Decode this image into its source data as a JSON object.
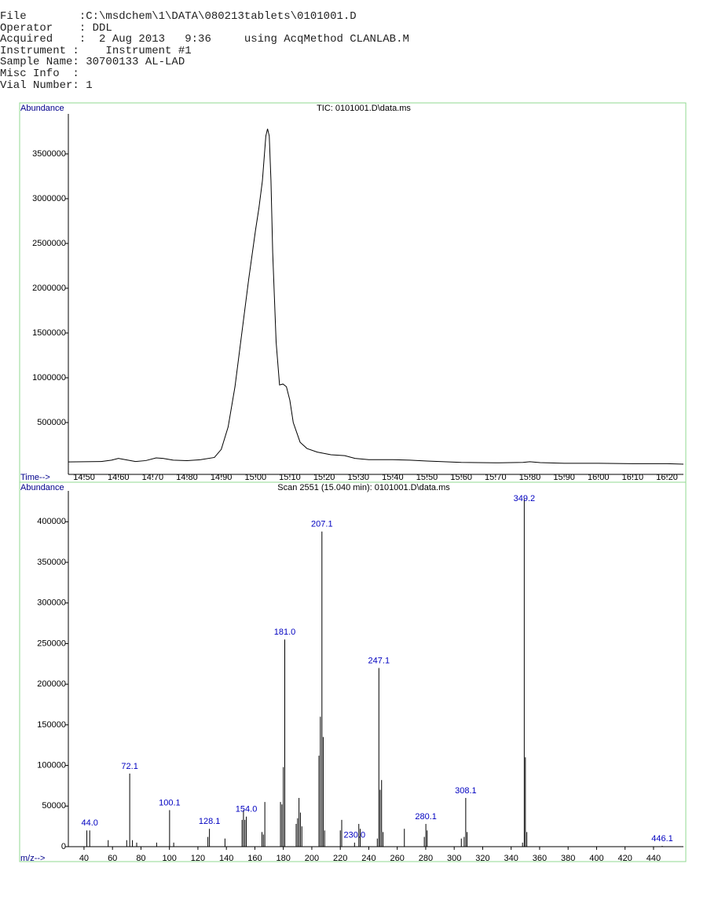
{
  "header": {
    "lines": [
      "File        :C:\\msdchem\\1\\DATA\\080213tablets\\0101001.D",
      "Operator    : DDL",
      "Acquired    :  2 Aug 2013   9:36     using AcqMethod CLANLAB.M",
      "Instrument :    Instrument #1",
      "Sample Name: 30700133 AL-LAD",
      "Misc Info  :",
      "Vial Number: 1"
    ]
  },
  "chart_data": [
    {
      "type": "line",
      "title": "TIC: 0101001.D\\data.ms",
      "xlabel": "Time-->",
      "ylabel": "Abundance",
      "color": "#000000",
      "label_color": "#00008b",
      "x": [
        14.454,
        14.5,
        14.55,
        14.58,
        14.6,
        14.62,
        14.65,
        14.68,
        14.71,
        14.73,
        14.76,
        14.8,
        14.84,
        14.88,
        14.9,
        14.92,
        14.94,
        14.96,
        14.98,
        15.0,
        15.01,
        15.02,
        15.03,
        15.035,
        15.04,
        15.045,
        15.05,
        15.06,
        15.07,
        15.08,
        15.09,
        15.1,
        15.11,
        15.13,
        15.15,
        15.18,
        15.22,
        15.26,
        15.29,
        15.33,
        15.4,
        15.45,
        15.5,
        15.6,
        15.7,
        15.78,
        15.8,
        15.83,
        15.9,
        16.0,
        16.1,
        16.2,
        16.248
      ],
      "values": [
        60000,
        62000,
        65000,
        80000,
        100000,
        85000,
        65000,
        75000,
        105000,
        100000,
        80000,
        75000,
        85000,
        110000,
        200000,
        450000,
        900000,
        1500000,
        2100000,
        2650000,
        2900000,
        3200000,
        3700000,
        3780000,
        3700000,
        3200000,
        2400000,
        1400000,
        920000,
        930000,
        900000,
        750000,
        500000,
        280000,
        210000,
        170000,
        140000,
        130000,
        100000,
        85000,
        85000,
        80000,
        70000,
        55000,
        50000,
        55000,
        62000,
        52000,
        45000,
        45000,
        40000,
        40000,
        35000
      ],
      "xlim": [
        14.454,
        16.248
      ],
      "ylim": [
        -79000,
        3947000
      ],
      "xticks": [
        {
          "value": 14.5,
          "label": "14.50"
        },
        {
          "value": 14.6,
          "label": "14.60"
        },
        {
          "value": 14.7,
          "label": "14.70"
        },
        {
          "value": 14.8,
          "label": "14.80"
        },
        {
          "value": 14.9,
          "label": "14.90"
        },
        {
          "value": 15.0,
          "label": "15.00"
        },
        {
          "value": 15.1,
          "label": "15.10"
        },
        {
          "value": 15.2,
          "label": "15.20"
        },
        {
          "value": 15.3,
          "label": "15.30"
        },
        {
          "value": 15.4,
          "label": "15.40"
        },
        {
          "value": 15.5,
          "label": "15.50"
        },
        {
          "value": 15.6,
          "label": "15.60"
        },
        {
          "value": 15.7,
          "label": "15.70"
        },
        {
          "value": 15.8,
          "label": "15.80"
        },
        {
          "value": 15.9,
          "label": "15.90"
        },
        {
          "value": 16.0,
          "label": "16.00"
        },
        {
          "value": 16.1,
          "label": "16.10"
        },
        {
          "value": 16.2,
          "label": "16.20"
        }
      ],
      "yticks": [
        500000,
        1000000,
        1500000,
        2000000,
        2500000,
        3000000,
        3500000
      ]
    },
    {
      "type": "bar",
      "title": "Scan 2551 (15.040 min): 0101001.D\\data.ms",
      "xlabel": "m/z-->",
      "ylabel": "Abundance",
      "color": "#000000",
      "label_color": "#00008b",
      "peak_label_color": "#0000c0",
      "x": [
        42,
        44.0,
        57,
        70,
        72.1,
        74,
        77,
        91,
        100.1,
        103,
        127,
        128.1,
        139,
        151,
        152,
        153,
        154.0,
        165,
        166,
        167,
        178,
        179,
        180,
        181.0,
        189,
        190,
        191,
        192,
        193,
        205,
        206,
        207.1,
        208,
        209,
        220,
        221,
        230.0,
        233,
        234,
        246,
        247.1,
        248,
        249,
        250,
        265,
        279,
        280.1,
        281,
        305,
        307,
        308.1,
        309,
        348,
        349.2,
        350,
        351,
        446.1
      ],
      "values": [
        20000,
        20000,
        8000,
        8000,
        90000,
        8000,
        5000,
        5000,
        45000,
        5000,
        12000,
        22000,
        10000,
        33000,
        45000,
        33000,
        37000,
        18000,
        15000,
        55000,
        55000,
        52000,
        98000,
        255000,
        28000,
        35000,
        60000,
        42000,
        25000,
        112000,
        160000,
        388000,
        135000,
        20000,
        20000,
        33000,
        5000,
        28000,
        22000,
        10000,
        220000,
        70000,
        82000,
        18000,
        22000,
        12000,
        28000,
        20000,
        10000,
        12000,
        60000,
        18000,
        5000,
        428000,
        110000,
        18000,
        1000
      ],
      "x_labels": [
        null,
        "44.0",
        null,
        null,
        "72.1",
        null,
        null,
        null,
        "100.1",
        null,
        null,
        "128.1",
        null,
        null,
        null,
        null,
        "154.0",
        null,
        null,
        null,
        null,
        null,
        null,
        "181.0",
        null,
        null,
        null,
        null,
        null,
        null,
        null,
        "207.1",
        null,
        null,
        null,
        null,
        "230.0",
        null,
        null,
        null,
        "247.1",
        null,
        null,
        null,
        null,
        null,
        "280.1",
        null,
        null,
        null,
        "308.1",
        null,
        null,
        "349.2",
        null,
        null,
        "446.1"
      ],
      "xlim": [
        29,
        461
      ],
      "ylim": [
        0,
        438000
      ],
      "xticks": [
        40,
        60,
        80,
        100,
        120,
        140,
        160,
        180,
        200,
        220,
        240,
        260,
        280,
        300,
        320,
        340,
        360,
        380,
        400,
        420,
        440
      ],
      "yticks": [
        0,
        50000,
        100000,
        150000,
        200000,
        250000,
        300000,
        350000,
        400000
      ]
    }
  ]
}
